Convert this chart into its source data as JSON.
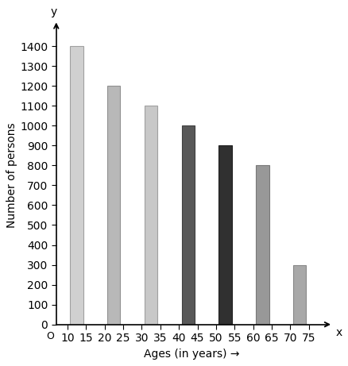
{
  "categories": [
    "10-15",
    "20-25",
    "30-35",
    "40-45",
    "50-55",
    "60-65",
    "70-75"
  ],
  "x_positions": [
    12.5,
    22.5,
    32.5,
    42.5,
    52.5,
    62.5,
    72.5
  ],
  "bar_width": 3.5,
  "values": [
    1400,
    1200,
    1100,
    1000,
    900,
    800,
    300
  ],
  "bar_colors": [
    "#d0d0d0",
    "#b8b8b8",
    "#c8c8c8",
    "#585858",
    "#303030",
    "#989898",
    "#a8a8a8"
  ],
  "bar_edgecolors": [
    "#a0a0a0",
    "#909090",
    "#a0a0a0",
    "#404040",
    "#202020",
    "#787878",
    "#888888"
  ],
  "xlabel": "Ages (in years) →",
  "ylabel": "Number of persons",
  "ylim": [
    0,
    1500
  ],
  "xlim": [
    7,
    80
  ],
  "yticks": [
    0,
    100,
    200,
    300,
    400,
    500,
    600,
    700,
    800,
    900,
    1000,
    1100,
    1200,
    1300,
    1400
  ],
  "xticks": [
    10,
    15,
    20,
    25,
    30,
    35,
    40,
    45,
    50,
    55,
    60,
    65,
    70,
    75
  ],
  "background_color": "#ffffff",
  "axis_label_fontsize": 10,
  "tick_fontsize": 8.5
}
